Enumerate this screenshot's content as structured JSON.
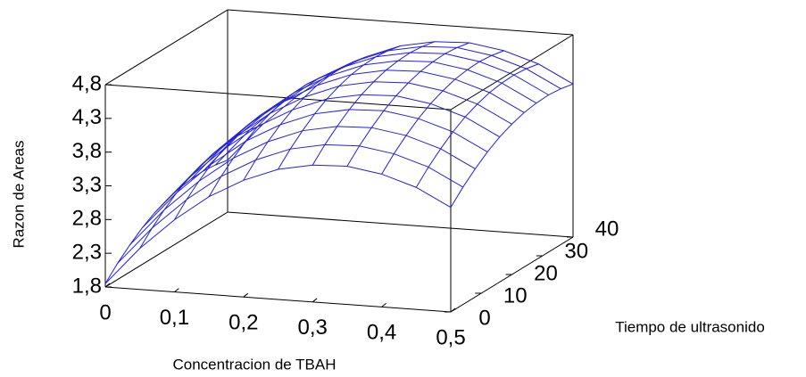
{
  "chart_data": {
    "type": "surface",
    "x_label": "Concentracion de TBAH",
    "y_label": "Tiempo de ultrasonido",
    "z_label": "Razon de Areas",
    "color": "#2020e0",
    "x": [
      0,
      0.05,
      0.1,
      0.15,
      0.2,
      0.25,
      0.3,
      0.35,
      0.4,
      0.45,
      0.5
    ],
    "y": [
      0,
      4,
      8,
      12,
      16,
      20,
      24,
      28,
      32,
      36,
      40
    ],
    "z": [
      [
        1.85,
        2.04,
        2.2,
        2.34,
        2.45,
        2.53,
        2.59,
        2.62,
        2.63,
        2.61,
        2.57
      ],
      [
        2.41,
        2.6,
        2.76,
        2.9,
        3.01,
        3.09,
        3.15,
        3.18,
        3.19,
        3.17,
        3.13
      ],
      [
        2.87,
        3.06,
        3.22,
        3.36,
        3.47,
        3.55,
        3.61,
        3.64,
        3.65,
        3.63,
        3.59
      ],
      [
        3.25,
        3.44,
        3.6,
        3.74,
        3.85,
        3.93,
        3.99,
        4.02,
        4.03,
        4.01,
        3.97
      ],
      [
        3.53,
        3.72,
        3.88,
        4.02,
        4.13,
        4.21,
        4.27,
        4.3,
        4.31,
        4.29,
        4.25
      ],
      [
        3.73,
        3.92,
        4.08,
        4.22,
        4.33,
        4.41,
        4.47,
        4.5,
        4.51,
        4.49,
        4.45
      ],
      [
        3.83,
        4.02,
        4.18,
        4.32,
        4.43,
        4.51,
        4.57,
        4.6,
        4.61,
        4.59,
        4.55
      ],
      [
        3.85,
        4.04,
        4.2,
        4.34,
        4.45,
        4.53,
        4.59,
        4.62,
        4.63,
        4.61,
        4.57
      ],
      [
        3.77,
        3.96,
        4.12,
        4.26,
        4.37,
        4.45,
        4.51,
        4.54,
        4.55,
        4.53,
        4.49
      ],
      [
        3.61,
        3.8,
        3.96,
        4.1,
        4.21,
        4.29,
        4.35,
        4.38,
        4.39,
        4.37,
        4.33
      ],
      [
        3.35,
        3.54,
        3.7,
        3.84,
        3.95,
        4.03,
        4.09,
        4.12,
        4.13,
        4.11,
        4.07
      ]
    ],
    "xlim": [
      0,
      0.5
    ],
    "ylim": [
      0,
      40
    ],
    "zlim": [
      1.8,
      4.8
    ],
    "xticks": [
      0,
      {
        "value": 0.1,
        "label": "0,1"
      },
      {
        "value": 0.2,
        "label": "0,2"
      },
      {
        "value": 0.3,
        "label": "0,3"
      },
      {
        "value": 0.4,
        "label": "0,4"
      },
      {
        "value": 0.5,
        "label": "0,5"
      }
    ],
    "yticks": [
      0,
      10,
      20,
      30,
      40
    ],
    "zticks": [
      {
        "value": 1.8,
        "label": "1,8"
      },
      {
        "value": 2.3,
        "label": "2,3"
      },
      {
        "value": 2.8,
        "label": "2,8"
      },
      {
        "value": 3.3,
        "label": "3,3"
      },
      {
        "value": 3.8,
        "label": "3,8"
      },
      {
        "value": 4.3,
        "label": "4,3"
      },
      {
        "value": 4.8,
        "label": "4,8"
      }
    ]
  }
}
